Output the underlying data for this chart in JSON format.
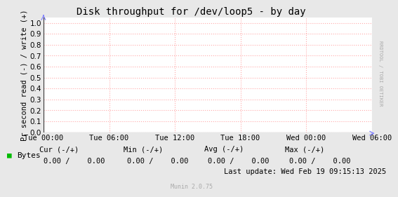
{
  "title": "Disk throughput for /dev/loop5 - by day",
  "ylabel": "Pr second read (-) / write (+)",
  "background_color": "#e8e8e8",
  "plot_bg_color": "#ffffff",
  "grid_color": "#ffaaaa",
  "ylim": [
    0.0,
    1.05
  ],
  "yticks": [
    0.0,
    0.1,
    0.2,
    0.3,
    0.4,
    0.5,
    0.6,
    0.7,
    0.8,
    0.9,
    1.0
  ],
  "xtick_labels": [
    "Tue 00:00",
    "Tue 06:00",
    "Tue 12:00",
    "Tue 18:00",
    "Wed 00:00",
    "Wed 06:00"
  ],
  "legend_label": "Bytes",
  "legend_color": "#00bb00",
  "cur_label": "Cur (-/+)",
  "cur_val": "0.00 /    0.00",
  "min_label": "Min (-/+)",
  "min_val": "0.00 /    0.00",
  "avg_label": "Avg (-/+)",
  "avg_val": "0.00 /    0.00",
  "max_label": "Max (-/+)",
  "max_val": "0.00 /    0.00",
  "last_update": "Last update: Wed Feb 19 09:15:13 2025",
  "munin_text": "Munin 2.0.75",
  "rrdtool_text": "RRDTOOL / TOBI OETIKER",
  "title_fontsize": 10,
  "tick_fontsize": 7.5,
  "legend_fontsize": 8,
  "table_fontsize": 7.5,
  "rrd_fontsize": 5,
  "munin_fontsize": 6
}
